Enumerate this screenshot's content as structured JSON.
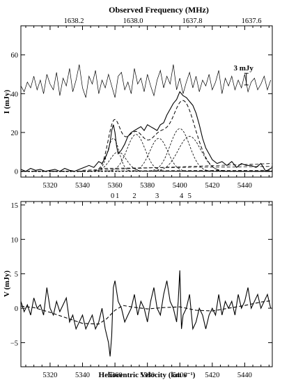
{
  "chart_data": [
    {
      "type": "line",
      "panel": "top",
      "top_axis": {
        "label": "Observed Frequency (MHz)",
        "ticks": [
          1638.2,
          1638.0,
          1637.8,
          1637.6
        ],
        "tick_labels": [
          "1638.2",
          "1638.0",
          "1637.8",
          "1637.6"
        ]
      },
      "xlim": [
        5302,
        5457
      ],
      "ylim": [
        -3,
        75
      ],
      "ylabel": "I (mJy)",
      "xticks": [
        5320,
        5340,
        5360,
        5380,
        5400,
        5420,
        5440
      ],
      "yticks": [
        0,
        20,
        40,
        60
      ],
      "annotation": {
        "text": "3 mJy",
        "x": 5441,
        "y": 47.5,
        "bar_from": 44.5,
        "bar_to": 50.5
      },
      "component_markers": [
        {
          "label": "0",
          "x": 5358.5
        },
        {
          "label": "1",
          "x": 5361.5
        },
        {
          "label": "2",
          "x": 5372
        },
        {
          "label": "3",
          "x": 5386
        },
        {
          "label": "4",
          "x": 5401
        },
        {
          "label": "5",
          "x": 5406
        }
      ],
      "components": [
        {
          "center": 5359,
          "amp": 17,
          "width": 3.5
        },
        {
          "center": 5362,
          "amp": 10,
          "width": 5
        },
        {
          "center": 5373,
          "amp": 19,
          "width": 5.5
        },
        {
          "center": 5387,
          "amp": 17,
          "width": 5.5
        },
        {
          "center": 5400,
          "amp": 22,
          "width": 6
        },
        {
          "center": 5406,
          "amp": 18,
          "width": 7
        }
      ],
      "series": [
        {
          "style": "solid",
          "x": [
            5302,
            5305,
            5308,
            5311,
            5314,
            5317,
            5320,
            5323,
            5326,
            5329,
            5332,
            5335,
            5338,
            5341,
            5344,
            5347,
            5350,
            5352,
            5354,
            5356,
            5357,
            5358,
            5359,
            5360,
            5361,
            5362,
            5364,
            5366,
            5368,
            5370,
            5372,
            5374,
            5376,
            5378,
            5380,
            5382,
            5384,
            5386,
            5388,
            5390,
            5392,
            5394,
            5396,
            5398,
            5400,
            5402,
            5404,
            5406,
            5408,
            5410,
            5412,
            5414,
            5416,
            5418,
            5420,
            5423,
            5426,
            5429,
            5432,
            5435,
            5438,
            5441,
            5444,
            5447,
            5450,
            5453,
            5457
          ],
          "y": [
            1,
            0,
            1.5,
            0.5,
            1,
            0,
            0.5,
            1,
            0,
            1.5,
            0.5,
            0,
            1,
            2,
            3,
            2,
            5,
            4,
            7,
            11,
            15,
            21,
            24,
            20,
            13,
            9,
            11,
            14,
            18,
            20,
            21,
            22,
            23,
            21,
            24,
            23,
            22,
            21,
            24,
            25,
            29,
            32,
            35,
            37,
            41,
            39,
            38,
            36,
            34,
            30,
            24,
            17,
            12,
            9,
            6,
            4,
            5,
            3,
            5,
            2,
            4,
            3,
            3,
            2,
            4,
            0,
            2
          ]
        },
        {
          "style": "thin",
          "x": [
            5302,
            5304,
            5306,
            5308,
            5310,
            5312,
            5314,
            5316,
            5318,
            5320,
            5322,
            5324,
            5326,
            5328,
            5330,
            5332,
            5334,
            5336,
            5338,
            5340,
            5342,
            5344,
            5346,
            5348,
            5350,
            5352,
            5354,
            5356,
            5358,
            5360,
            5362,
            5364,
            5366,
            5368,
            5370,
            5372,
            5374,
            5376,
            5378,
            5380,
            5382,
            5384,
            5386,
            5388,
            5390,
            5392,
            5394,
            5396,
            5398,
            5400,
            5402,
            5404,
            5406,
            5408,
            5410,
            5412,
            5414,
            5416,
            5418,
            5420,
            5422,
            5424,
            5426,
            5428,
            5430,
            5432,
            5434,
            5436,
            5438,
            5440,
            5442,
            5444,
            5446,
            5448,
            5450,
            5452,
            5454,
            5456
          ],
          "y": [
            44,
            41,
            46,
            43,
            49,
            42,
            47,
            40,
            50,
            45,
            42,
            51,
            39,
            48,
            44,
            53,
            41,
            47,
            55,
            43,
            38,
            49,
            45,
            52,
            40,
            47,
            43,
            50,
            44,
            38,
            49,
            51,
            42,
            46,
            40,
            53,
            45,
            48,
            41,
            50,
            44,
            39,
            47,
            52,
            43,
            49,
            45,
            55,
            42,
            48,
            40,
            46,
            51,
            43,
            49,
            41,
            47,
            44,
            50,
            42,
            46,
            52,
            40,
            48,
            44,
            49,
            42,
            47,
            43,
            50,
            41,
            46,
            48,
            42,
            45,
            49,
            42,
            47
          ]
        }
      ]
    },
    {
      "type": "line",
      "panel": "bottom",
      "xlim": [
        5302,
        5457
      ],
      "ylim": [
        -8.5,
        15.5
      ],
      "xlabel": "Heliocentric Velocity (km s⁻¹)",
      "ylabel": "V (mJy)",
      "xticks": [
        5320,
        5340,
        5360,
        5380,
        5400,
        5420,
        5440
      ],
      "yticks": [
        -5,
        0,
        5,
        10,
        15
      ],
      "series": [
        {
          "style": "solid",
          "x": [
            5302,
            5304,
            5306,
            5308,
            5310,
            5312,
            5314,
            5316,
            5318,
            5320,
            5322,
            5324,
            5326,
            5328,
            5330,
            5332,
            5334,
            5336,
            5338,
            5340,
            5342,
            5344,
            5346,
            5348,
            5350,
            5352,
            5354,
            5356,
            5357,
            5358,
            5359,
            5360,
            5362,
            5364,
            5366,
            5368,
            5370,
            5372,
            5374,
            5376,
            5378,
            5380,
            5382,
            5384,
            5386,
            5388,
            5390,
            5392,
            5394,
            5396,
            5398,
            5399,
            5400,
            5401,
            5402,
            5404,
            5406,
            5408,
            5410,
            5412,
            5414,
            5416,
            5418,
            5420,
            5422,
            5424,
            5426,
            5428,
            5430,
            5432,
            5434,
            5436,
            5438,
            5440,
            5442,
            5444,
            5446,
            5448,
            5450,
            5452,
            5454,
            5456
          ],
          "y": [
            1,
            -0.5,
            0.5,
            -1,
            1.5,
            0,
            0.5,
            -1,
            3,
            0,
            -1,
            1,
            -0.5,
            0.5,
            1.5,
            -2,
            -1,
            -3,
            -2,
            -1,
            -3,
            -2,
            -1,
            -3,
            -2,
            0,
            -3,
            -5,
            -7,
            -4,
            3,
            4,
            1,
            0,
            -2,
            -1,
            0,
            2,
            -1,
            1,
            0,
            -2,
            1,
            3,
            0,
            -1,
            2,
            4,
            1,
            0,
            -2,
            1,
            5.5,
            -3,
            -1,
            0,
            2,
            -3,
            -2,
            0,
            -1,
            -3,
            -1,
            0,
            -1,
            2,
            -1,
            1,
            0,
            1,
            -1,
            2,
            0,
            1,
            3,
            0,
            1,
            2,
            0,
            1,
            2,
            0
          ]
        },
        {
          "style": "dashed",
          "x": [
            5302,
            5310,
            5320,
            5330,
            5340,
            5350,
            5355,
            5360,
            5365,
            5370,
            5380,
            5390,
            5400,
            5410,
            5420,
            5430,
            5440,
            5450,
            5457
          ],
          "y": [
            0.3,
            0.1,
            -0.6,
            -1.4,
            -2.2,
            -2.3,
            -1.5,
            -0.3,
            0.4,
            0.2,
            -0.1,
            0.1,
            0.2,
            -0.3,
            -0.4,
            0,
            0.4,
            0.9,
            1.1
          ]
        }
      ]
    }
  ]
}
